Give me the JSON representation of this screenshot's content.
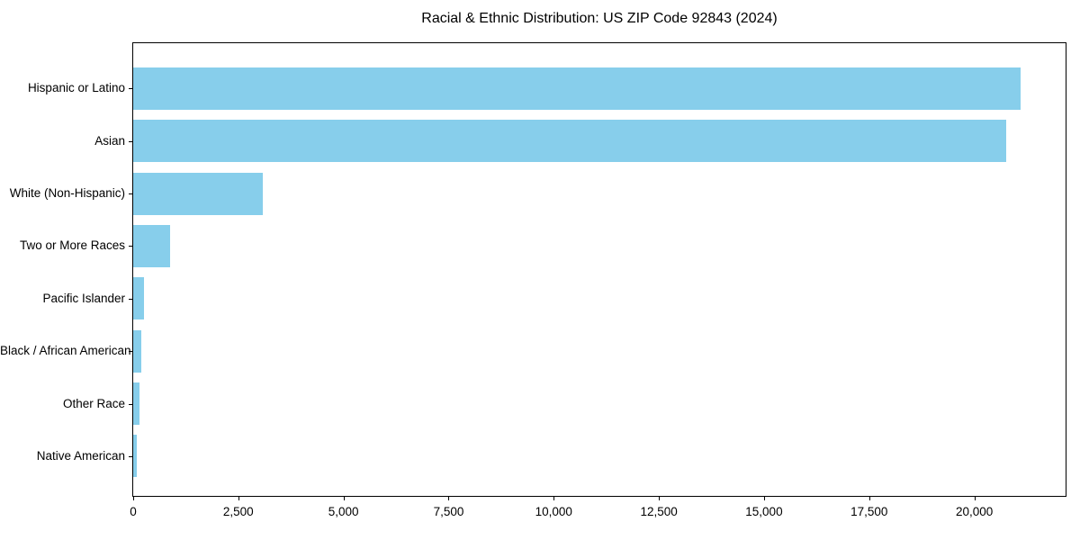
{
  "chart_data": {
    "type": "bar",
    "orientation": "horizontal",
    "title": "Racial & Ethnic Distribution: US ZIP Code 92843 (2024)",
    "categories": [
      "Hispanic or Latino",
      "Asian",
      "White (Non-Hispanic)",
      "Two or More Races",
      "Pacific Islander",
      "Black / African American",
      "Other Race",
      "Native American"
    ],
    "values": [
      21100,
      20760,
      3090,
      870,
      260,
      195,
      150,
      95
    ],
    "xlabel": "",
    "ylabel": "",
    "xlim": [
      0,
      22170
    ],
    "x_ticks": [
      0,
      2500,
      5000,
      7500,
      10000,
      12500,
      15000,
      17500,
      20000
    ],
    "x_tick_labels": [
      "0",
      "2,500",
      "5,000",
      "7,500",
      "10,000",
      "12,500",
      "15,000",
      "17,500",
      "20,000"
    ],
    "grid": false,
    "legend": null,
    "bar_color": "#87CEEB",
    "background_color": "#ffffff",
    "frame_color": "#000000"
  }
}
